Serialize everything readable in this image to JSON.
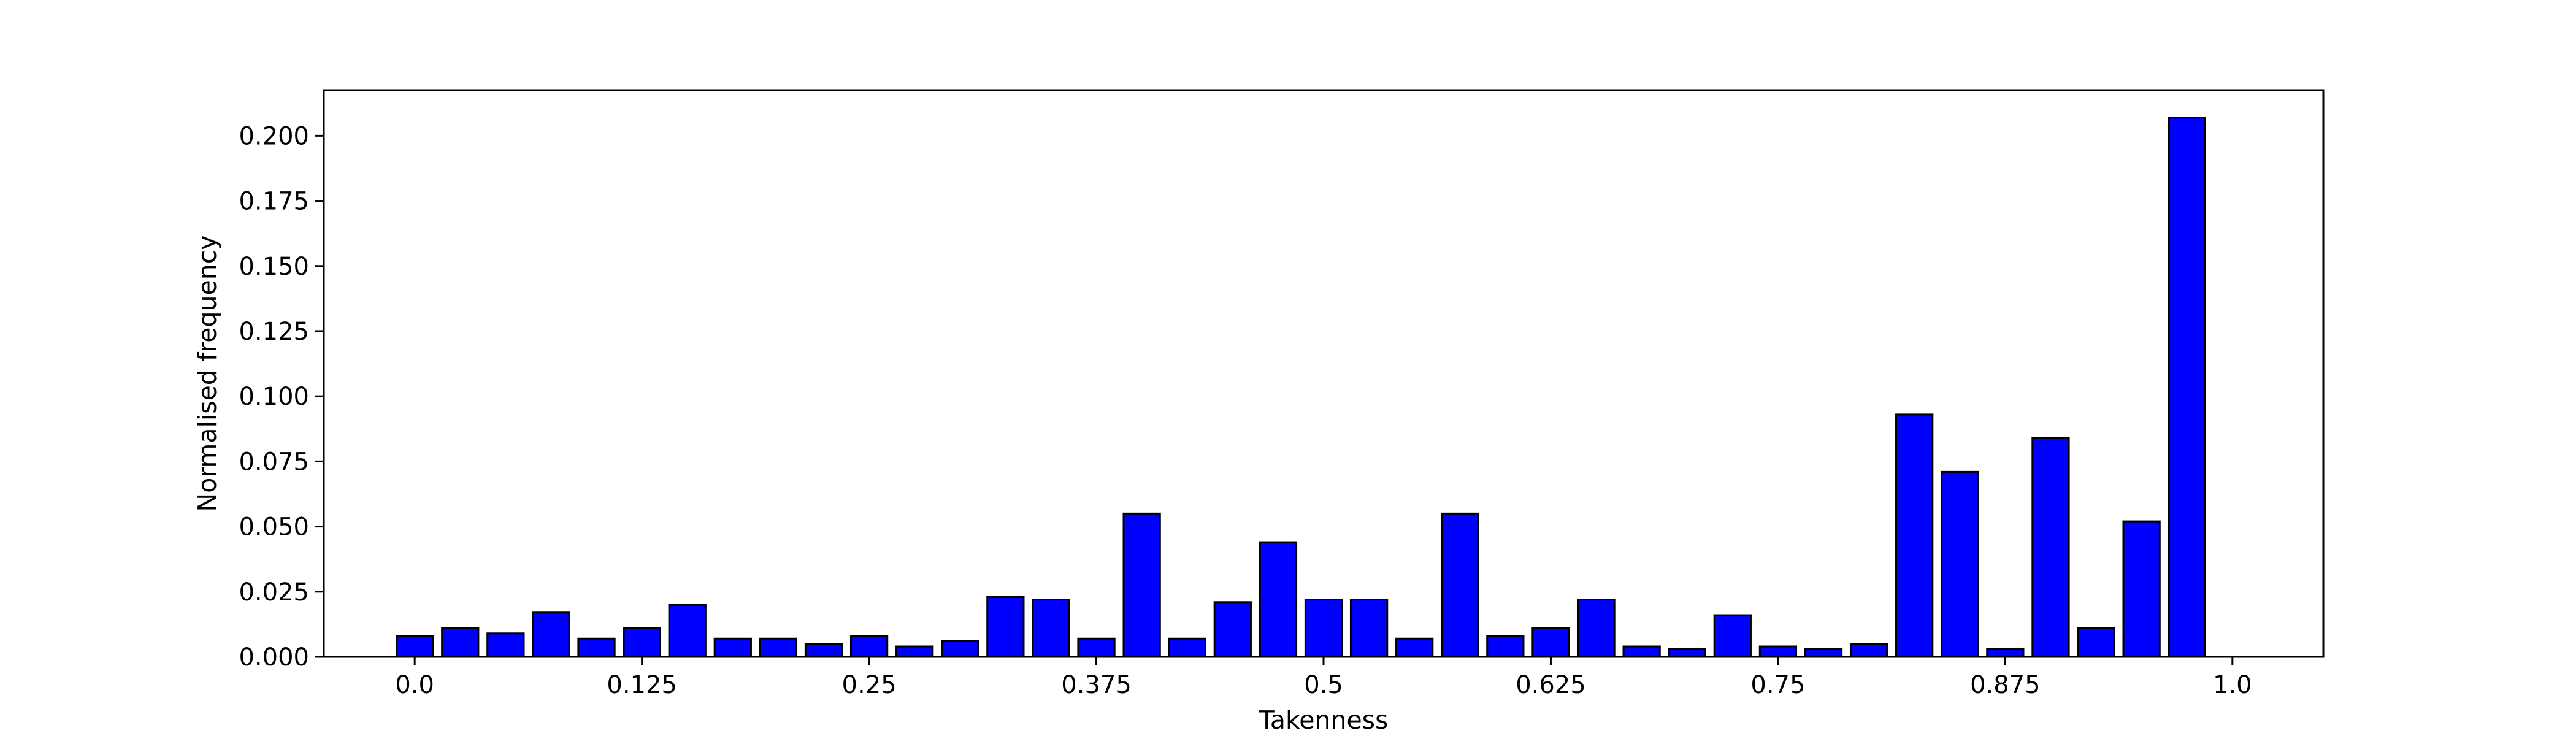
{
  "chart_data": {
    "type": "bar",
    "xlabel": "Takenness",
    "ylabel": "Normalised frequency",
    "xlim": [
      -0.05,
      1.05
    ],
    "ylim": [
      0,
      0.2175
    ],
    "bar_color": "#0000ff",
    "edge_color": "#000000",
    "bar_width_fraction": 0.8,
    "grid": false,
    "x_ticks": [
      {
        "value": 0.0,
        "label": "0.0"
      },
      {
        "value": 0.125,
        "label": "0.125"
      },
      {
        "value": 0.25,
        "label": "0.25"
      },
      {
        "value": 0.375,
        "label": "0.375"
      },
      {
        "value": 0.5,
        "label": "0.5"
      },
      {
        "value": 0.625,
        "label": "0.625"
      },
      {
        "value": 0.75,
        "label": "0.75"
      },
      {
        "value": 0.875,
        "label": "0.875"
      },
      {
        "value": 1.0,
        "label": "1.0"
      }
    ],
    "y_ticks": [
      {
        "value": 0.0,
        "label": "0.000"
      },
      {
        "value": 0.025,
        "label": "0.025"
      },
      {
        "value": 0.05,
        "label": "0.050"
      },
      {
        "value": 0.075,
        "label": "0.075"
      },
      {
        "value": 0.1,
        "label": "0.100"
      },
      {
        "value": 0.125,
        "label": "0.125"
      },
      {
        "value": 0.15,
        "label": "0.150"
      },
      {
        "value": 0.175,
        "label": "0.175"
      },
      {
        "value": 0.2,
        "label": "0.200"
      }
    ],
    "x": [
      0.0,
      0.025,
      0.05,
      0.075,
      0.1,
      0.125,
      0.15,
      0.175,
      0.2,
      0.225,
      0.25,
      0.275,
      0.3,
      0.325,
      0.35,
      0.375,
      0.4,
      0.425,
      0.45,
      0.475,
      0.5,
      0.525,
      0.55,
      0.575,
      0.6,
      0.625,
      0.65,
      0.675,
      0.7,
      0.725,
      0.75,
      0.775,
      0.8,
      0.825,
      0.85,
      0.875,
      0.9,
      0.925,
      0.95,
      0.975
    ],
    "values": [
      0.008,
      0.011,
      0.009,
      0.017,
      0.007,
      0.011,
      0.02,
      0.007,
      0.007,
      0.005,
      0.008,
      0.004,
      0.006,
      0.023,
      0.022,
      0.007,
      0.055,
      0.007,
      0.021,
      0.044,
      0.022,
      0.022,
      0.007,
      0.055,
      0.008,
      0.011,
      0.022,
      0.004,
      0.003,
      0.016,
      0.004,
      0.003,
      0.005,
      0.093,
      0.071,
      0.003,
      0.084,
      0.011,
      0.052,
      0.207
    ]
  }
}
